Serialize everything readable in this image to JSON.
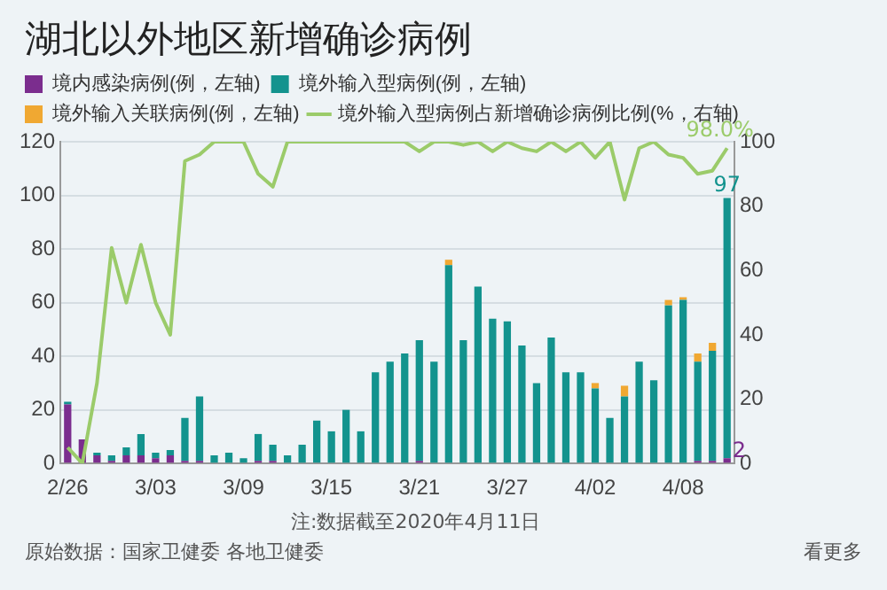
{
  "chart_data": {
    "type": "bar",
    "title": "湖北以外地区新增确诊病例",
    "categories": [
      "2/26",
      null,
      null,
      null,
      null,
      null,
      "3/03",
      null,
      null,
      null,
      null,
      null,
      "3/09",
      null,
      null,
      null,
      null,
      null,
      "3/15",
      null,
      null,
      null,
      null,
      null,
      "3/21",
      null,
      null,
      null,
      null,
      null,
      "3/27",
      null,
      null,
      null,
      null,
      null,
      "4/02",
      null,
      null,
      null,
      null,
      null,
      "4/08",
      null,
      null,
      null
    ],
    "stacked": true,
    "series": [
      {
        "name": "境内感染病例(例，左轴)",
        "color": "#7b2d8e",
        "values": [
          22,
          9,
          3,
          1,
          3,
          3,
          2,
          3,
          1,
          1,
          0,
          0,
          0,
          1,
          1,
          0,
          0,
          0,
          0,
          0,
          0,
          0,
          0,
          0,
          1,
          0,
          0,
          0,
          0,
          0,
          0,
          0,
          0,
          0,
          0,
          0,
          0,
          0,
          0,
          0,
          0,
          0,
          0,
          1,
          1,
          2
        ],
        "value_labels": [
          null,
          null,
          null,
          null,
          null,
          null,
          null,
          null,
          null,
          null,
          null,
          null,
          null,
          null,
          null,
          null,
          null,
          null,
          null,
          null,
          null,
          null,
          null,
          null,
          null,
          null,
          null,
          null,
          null,
          null,
          null,
          null,
          null,
          null,
          null,
          null,
          null,
          null,
          null,
          null,
          null,
          null,
          null,
          null,
          null,
          "2"
        ]
      },
      {
        "name": "境外输入型病例(例，左轴)",
        "color": "#13938e",
        "values": [
          1,
          0,
          1,
          2,
          3,
          8,
          2,
          2,
          16,
          24,
          3,
          4,
          2,
          10,
          6,
          3,
          7,
          16,
          12,
          20,
          12,
          34,
          38,
          41,
          45,
          38,
          74,
          46,
          66,
          54,
          53,
          44,
          30,
          47,
          34,
          34,
          28,
          17,
          25,
          38,
          31,
          59,
          61,
          37,
          41,
          97
        ],
        "value_labels": [
          null,
          null,
          null,
          null,
          null,
          null,
          null,
          null,
          null,
          null,
          null,
          null,
          null,
          null,
          null,
          null,
          null,
          null,
          null,
          null,
          null,
          null,
          null,
          null,
          null,
          null,
          null,
          null,
          null,
          null,
          null,
          null,
          null,
          null,
          null,
          null,
          null,
          null,
          null,
          null,
          null,
          null,
          null,
          null,
          null,
          "97"
        ]
      },
      {
        "name": "境外输入关联病例(例，左轴)",
        "color": "#f0a832",
        "values": [
          0,
          0,
          0,
          0,
          0,
          0,
          0,
          0,
          0,
          0,
          0,
          0,
          0,
          0,
          0,
          0,
          0,
          0,
          0,
          0,
          0,
          0,
          0,
          0,
          0,
          0,
          2,
          0,
          0,
          0,
          0,
          0,
          0,
          0,
          0,
          0,
          2,
          0,
          4,
          0,
          0,
          2,
          1,
          3,
          3,
          0
        ]
      },
      {
        "name": "境外输入型病例占新增确诊病例比例(%，右轴)",
        "type": "line",
        "axis": "y2",
        "color": "#9bcb6a",
        "values": [
          5,
          0,
          25,
          67,
          50,
          68,
          50,
          40,
          94,
          96,
          100,
          100,
          100,
          90,
          86,
          100,
          100,
          100,
          100,
          100,
          100,
          100,
          100,
          100,
          97,
          100,
          100,
          99,
          100,
          97,
          100,
          98,
          97,
          100,
          97,
          100,
          95,
          100,
          82,
          98,
          100,
          96,
          95,
          90,
          91,
          98.0
        ],
        "value_labels": [
          null,
          null,
          null,
          null,
          null,
          null,
          null,
          null,
          null,
          null,
          null,
          null,
          null,
          null,
          null,
          null,
          null,
          null,
          null,
          null,
          null,
          null,
          null,
          null,
          null,
          null,
          null,
          null,
          null,
          null,
          null,
          null,
          null,
          null,
          null,
          null,
          null,
          null,
          null,
          null,
          null,
          null,
          null,
          null,
          null,
          "98.0%"
        ]
      }
    ],
    "ylim": [
      0,
      120
    ],
    "yticks": [
      0,
      20,
      40,
      60,
      80,
      100,
      120
    ],
    "y2lim": [
      0,
      100
    ],
    "y2ticks": [
      0,
      20,
      40,
      60,
      80,
      100
    ],
    "grid": "y",
    "legend": "top left",
    "marker": "none",
    "line_style": "solid",
    "annotations": [
      "注:数据截至2020年4月11日",
      "原始数据：国家卫健委 各地卫健委",
      "看更多"
    ]
  }
}
